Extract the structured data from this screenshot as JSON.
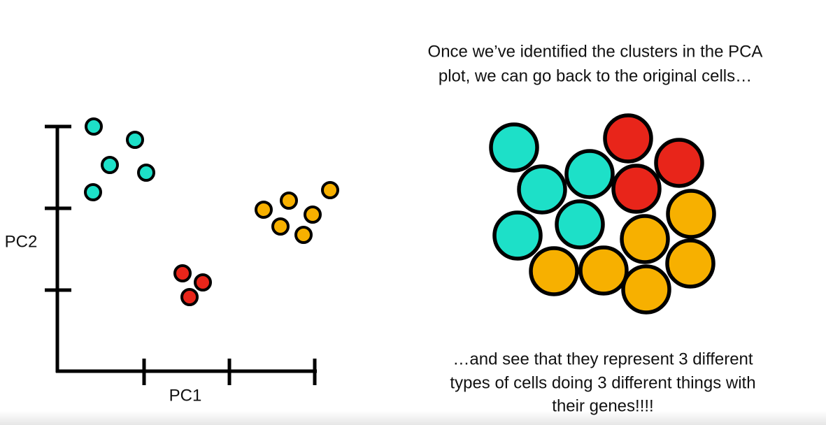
{
  "caption_top": {
    "lines": [
      "Once we’ve identified the clusters in the PCA",
      "plot, we can go back to the original cells…"
    ]
  },
  "pca_plot": {
    "x_label": "PC1",
    "y_label": "PC2"
  },
  "caption_bottom": {
    "lines": [
      "…and see that they represent 3 different",
      "types of cells doing 3 different things with",
      "their genes!!!!"
    ]
  }
}
